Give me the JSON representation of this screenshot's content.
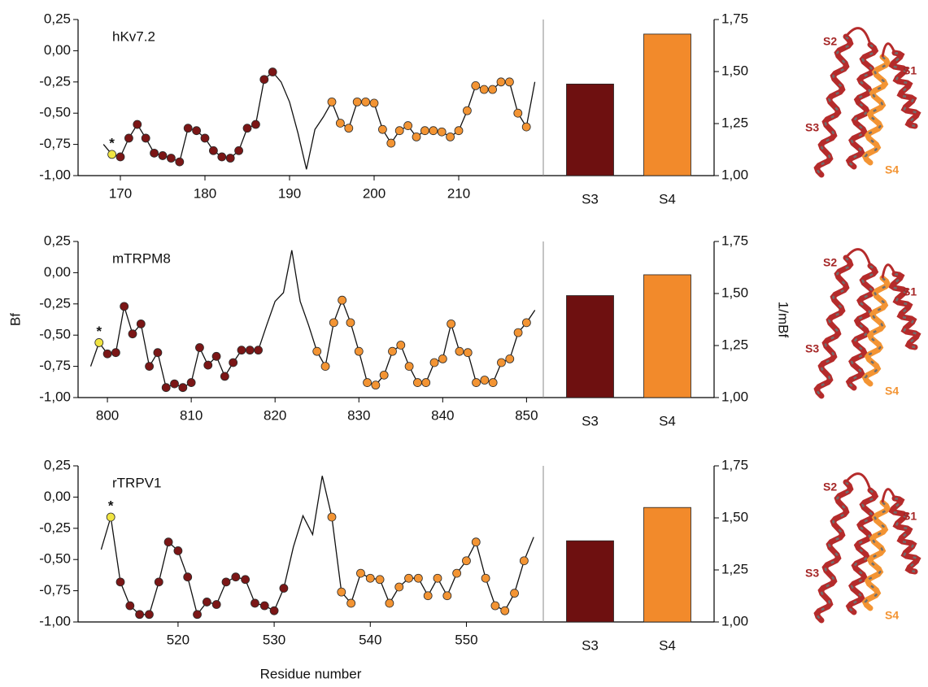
{
  "chart_data": [
    {
      "type": "line",
      "title": "hKv7.2",
      "x": [
        168,
        169,
        170,
        171,
        172,
        173,
        174,
        175,
        176,
        177,
        178,
        179,
        180,
        181,
        182,
        183,
        184,
        185,
        186,
        187,
        188,
        189,
        190,
        191,
        192,
        193,
        194,
        195,
        196,
        197,
        198,
        199,
        200,
        201,
        202,
        203,
        204,
        205,
        206,
        207,
        208,
        209,
        210,
        211,
        212,
        213,
        214,
        215,
        216,
        217,
        218,
        219
      ],
      "values": [
        -0.75,
        -0.83,
        -0.85,
        -0.7,
        -0.59,
        -0.7,
        -0.82,
        -0.84,
        -0.86,
        -0.89,
        -0.62,
        -0.64,
        -0.7,
        -0.8,
        -0.85,
        -0.86,
        -0.8,
        -0.62,
        -0.59,
        -0.23,
        -0.17,
        -0.25,
        -0.41,
        -0.66,
        -0.95,
        -0.63,
        -0.53,
        -0.41,
        -0.58,
        -0.62,
        -0.41,
        -0.41,
        -0.42,
        -0.63,
        -0.74,
        -0.64,
        -0.6,
        -0.69,
        -0.64,
        -0.64,
        -0.65,
        -0.69,
        -0.64,
        -0.48,
        -0.28,
        -0.31,
        -0.31,
        -0.25,
        -0.25,
        -0.5,
        -0.61,
        -0.25
      ],
      "point_colors": [
        null,
        "#f0e442",
        "#7b1616",
        "#7b1616",
        "#7b1616",
        "#7b1616",
        "#7b1616",
        "#7b1616",
        "#7b1616",
        "#7b1616",
        "#7b1616",
        "#7b1616",
        "#7b1616",
        "#7b1616",
        "#7b1616",
        "#7b1616",
        "#7b1616",
        "#7b1616",
        "#7b1616",
        "#7b1616",
        "#7b1616",
        null,
        null,
        null,
        null,
        null,
        null,
        "#f39433",
        "#f39433",
        "#f39433",
        "#f39433",
        "#f39433",
        "#f39433",
        "#f39433",
        "#f39433",
        "#f39433",
        "#f39433",
        "#f39433",
        "#f39433",
        "#f39433",
        "#f39433",
        "#f39433",
        "#f39433",
        "#f39433",
        "#f39433",
        "#f39433",
        "#f39433",
        "#f39433",
        "#f39433",
        "#f39433",
        "#f39433",
        null
      ],
      "annotations": [
        {
          "text": "*",
          "x": 169
        }
      ],
      "xlim": [
        165,
        220
      ],
      "xticks": [
        170,
        180,
        190,
        200,
        210
      ],
      "ylim": [
        -1,
        0.25
      ],
      "yticks": [
        {
          "value": -1,
          "label": "-1,00"
        },
        {
          "value": -0.75,
          "label": "-0,75"
        },
        {
          "value": -0.5,
          "label": "-0,50"
        },
        {
          "value": -0.25,
          "label": "-0,25"
        },
        {
          "value": 0,
          "label": "0,00"
        },
        {
          "value": 0.25,
          "label": "0,25"
        }
      ]
    },
    {
      "type": "bar",
      "categories": [
        "S3",
        "S4"
      ],
      "values": [
        1.44,
        1.68
      ],
      "colors": [
        "#6e1010",
        "#f28a2b"
      ],
      "ylim": [
        1,
        1.75
      ],
      "yticks": [
        {
          "value": 1,
          "label": "1,00"
        },
        {
          "value": 1.25,
          "label": "1,25"
        },
        {
          "value": 1.5,
          "label": "1,50"
        },
        {
          "value": 1.75,
          "label": "1,75"
        }
      ]
    },
    {
      "type": "line",
      "title": "mTRPM8",
      "ylabel": "Bf",
      "x": [
        798,
        799,
        800,
        801,
        802,
        803,
        804,
        805,
        806,
        807,
        808,
        809,
        810,
        811,
        812,
        813,
        814,
        815,
        816,
        817,
        818,
        819,
        820,
        821,
        822,
        823,
        824,
        825,
        826,
        827,
        828,
        829,
        830,
        831,
        832,
        833,
        834,
        835,
        836,
        837,
        838,
        839,
        840,
        841,
        842,
        843,
        844,
        845,
        846,
        847,
        848,
        849,
        850,
        851
      ],
      "values": [
        -0.75,
        -0.56,
        -0.65,
        -0.64,
        -0.27,
        -0.49,
        -0.41,
        -0.75,
        -0.64,
        -0.92,
        -0.89,
        -0.92,
        -0.88,
        -0.6,
        -0.74,
        -0.67,
        -0.83,
        -0.72,
        -0.62,
        -0.62,
        -0.62,
        -0.42,
        -0.23,
        -0.16,
        0.18,
        -0.23,
        -0.42,
        -0.63,
        -0.75,
        -0.4,
        -0.22,
        -0.4,
        -0.63,
        -0.88,
        -0.9,
        -0.82,
        -0.63,
        -0.58,
        -0.75,
        -0.88,
        -0.88,
        -0.72,
        -0.69,
        -0.41,
        -0.63,
        -0.64,
        -0.88,
        -0.86,
        -0.88,
        -0.72,
        -0.69,
        -0.48,
        -0.4,
        -0.3
      ],
      "point_colors": [
        null,
        "#f0e442",
        "#7b1616",
        "#7b1616",
        "#7b1616",
        "#7b1616",
        "#7b1616",
        "#7b1616",
        "#7b1616",
        "#7b1616",
        "#7b1616",
        "#7b1616",
        "#7b1616",
        "#7b1616",
        "#7b1616",
        "#7b1616",
        "#7b1616",
        "#7b1616",
        "#7b1616",
        "#7b1616",
        "#7b1616",
        null,
        null,
        null,
        null,
        null,
        null,
        "#f39433",
        "#f39433",
        "#f39433",
        "#f39433",
        "#f39433",
        "#f39433",
        "#f39433",
        "#f39433",
        "#f39433",
        "#f39433",
        "#f39433",
        "#f39433",
        "#f39433",
        "#f39433",
        "#f39433",
        "#f39433",
        "#f39433",
        "#f39433",
        "#f39433",
        "#f39433",
        "#f39433",
        "#f39433",
        "#f39433",
        "#f39433",
        "#f39433",
        "#f39433",
        null
      ],
      "annotations": [
        {
          "text": "*",
          "x": 799
        }
      ],
      "xlim": [
        796.5,
        852
      ],
      "xticks": [
        800,
        810,
        820,
        830,
        840,
        850
      ],
      "ylim": [
        -1,
        0.25
      ],
      "yticks": [
        {
          "value": -1,
          "label": "-1,00"
        },
        {
          "value": -0.75,
          "label": "-0,75"
        },
        {
          "value": -0.5,
          "label": "-0,50"
        },
        {
          "value": -0.25,
          "label": "-0,25"
        },
        {
          "value": 0,
          "label": "0,00"
        },
        {
          "value": 0.25,
          "label": "0,25"
        }
      ]
    },
    {
      "type": "bar",
      "categories": [
        "S3",
        "S4"
      ],
      "values": [
        1.49,
        1.59
      ],
      "colors": [
        "#6e1010",
        "#f28a2b"
      ],
      "ylabel": "1/mBf",
      "ylim": [
        1,
        1.75
      ],
      "yticks": [
        {
          "value": 1,
          "label": "1,00"
        },
        {
          "value": 1.25,
          "label": "1,25"
        },
        {
          "value": 1.5,
          "label": "1,50"
        },
        {
          "value": 1.75,
          "label": "1,75"
        }
      ]
    },
    {
      "type": "line",
      "title": "rTRPV1",
      "xlabel": "Residue number",
      "x": [
        512,
        513,
        514,
        515,
        516,
        517,
        518,
        519,
        520,
        521,
        522,
        523,
        524,
        525,
        526,
        527,
        528,
        529,
        530,
        531,
        532,
        533,
        534,
        535,
        536,
        537,
        538,
        539,
        540,
        541,
        542,
        543,
        544,
        545,
        546,
        547,
        548,
        549,
        550,
        551,
        552,
        553,
        554,
        555,
        556,
        557
      ],
      "values": [
        -0.42,
        -0.16,
        -0.68,
        -0.87,
        -0.94,
        -0.94,
        -0.68,
        -0.36,
        -0.43,
        -0.64,
        -0.94,
        -0.84,
        -0.86,
        -0.68,
        -0.64,
        -0.66,
        -0.85,
        -0.87,
        -0.91,
        -0.73,
        -0.4,
        -0.15,
        -0.3,
        0.17,
        -0.16,
        -0.76,
        -0.85,
        -0.61,
        -0.65,
        -0.66,
        -0.85,
        -0.72,
        -0.65,
        -0.65,
        -0.79,
        -0.65,
        -0.79,
        -0.61,
        -0.51,
        -0.36,
        -0.65,
        -0.87,
        -0.91,
        -0.77,
        -0.51,
        -0.32
      ],
      "point_colors": [
        null,
        "#f0e442",
        "#7b1616",
        "#7b1616",
        "#7b1616",
        "#7b1616",
        "#7b1616",
        "#7b1616",
        "#7b1616",
        "#7b1616",
        "#7b1616",
        "#7b1616",
        "#7b1616",
        "#7b1616",
        "#7b1616",
        "#7b1616",
        "#7b1616",
        "#7b1616",
        "#7b1616",
        "#7b1616",
        null,
        null,
        null,
        null,
        "#f39433",
        "#f39433",
        "#f39433",
        "#f39433",
        "#f39433",
        "#f39433",
        "#f39433",
        "#f39433",
        "#f39433",
        "#f39433",
        "#f39433",
        "#f39433",
        "#f39433",
        "#f39433",
        "#f39433",
        "#f39433",
        "#f39433",
        "#f39433",
        "#f39433",
        "#f39433",
        "#f39433",
        null
      ],
      "annotations": [
        {
          "text": "*",
          "x": 513
        }
      ],
      "xlim": [
        509.6,
        558
      ],
      "xticks": [
        520,
        530,
        540,
        550
      ],
      "ylim": [
        -1,
        0.25
      ],
      "yticks": [
        {
          "value": -1,
          "label": "-1,00"
        },
        {
          "value": -0.75,
          "label": "-0,75"
        },
        {
          "value": -0.5,
          "label": "-0,50"
        },
        {
          "value": -0.25,
          "label": "-0,25"
        },
        {
          "value": 0,
          "label": "0,00"
        },
        {
          "value": 0.25,
          "label": "0,25"
        }
      ]
    },
    {
      "type": "bar",
      "categories": [
        "S3",
        "S4"
      ],
      "values": [
        1.39,
        1.55
      ],
      "colors": [
        "#6e1010",
        "#f28a2b"
      ],
      "ylim": [
        1,
        1.75
      ],
      "yticks": [
        {
          "value": 1,
          "label": "1,00"
        },
        {
          "value": 1.25,
          "label": "1,25"
        },
        {
          "value": 1.5,
          "label": "1,50"
        },
        {
          "value": 1.75,
          "label": "1,75"
        }
      ]
    }
  ],
  "structures": [
    {
      "labels": [
        "S2",
        "S1",
        "S3",
        "S4"
      ]
    },
    {
      "labels": [
        "S2",
        "S1",
        "S3",
        "S4"
      ]
    },
    {
      "labels": [
        "S2",
        "S1",
        "S3",
        "S4"
      ]
    }
  ]
}
